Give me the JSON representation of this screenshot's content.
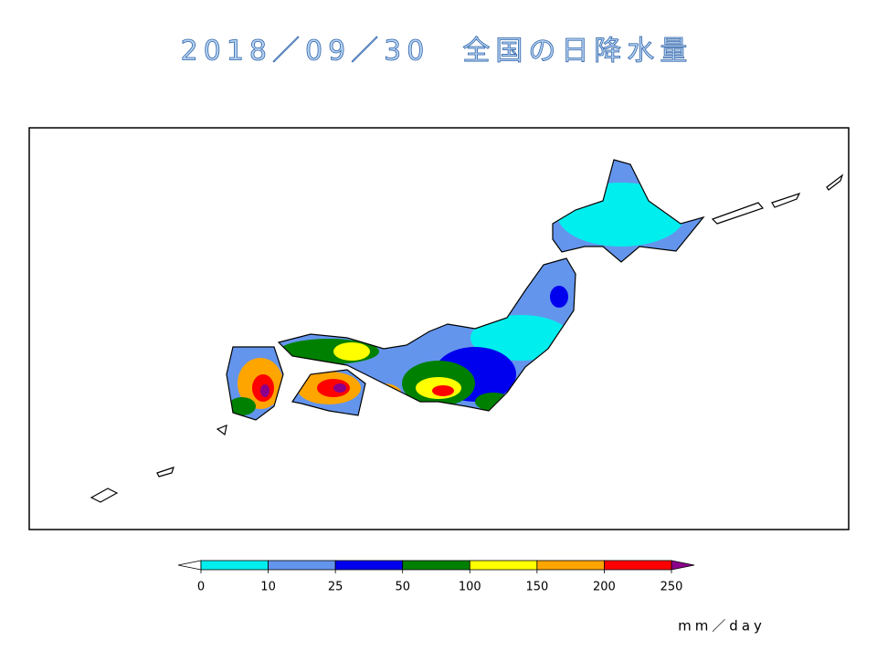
{
  "title": "2018／09／30　全国の日降水量",
  "colorbar": {
    "ticks": [
      0,
      10,
      25,
      50,
      100,
      150,
      200,
      250
    ],
    "colors": [
      "#00eeee",
      "#6495ed",
      "#0000ee",
      "#008000",
      "#ffff00",
      "#ffa500",
      "#ff0000"
    ],
    "under_color": "#ffffff",
    "over_color": "#8b008b",
    "unit": "mm／day"
  }
}
